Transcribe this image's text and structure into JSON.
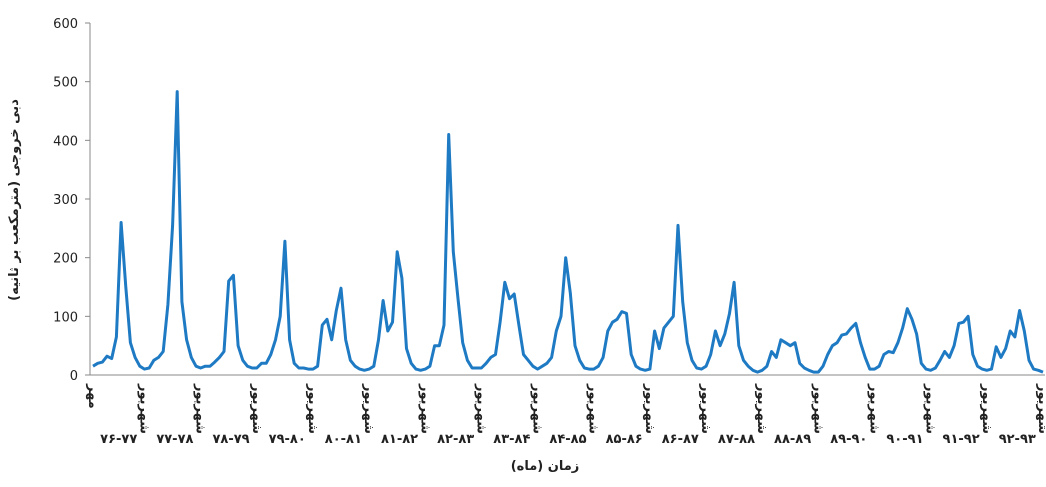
{
  "chart_data": {
    "type": "line",
    "y_label": "دبی خروجی (مترمکعب بر ثانیه)",
    "x_label": "زمان (ماه)",
    "ylim": [
      0,
      600
    ],
    "yticks": [
      0,
      100,
      200,
      300,
      400,
      500,
      600
    ],
    "year_labels": [
      "۷۶-۷۷",
      "۷۷-۷۸",
      "۷۸-۷۹",
      "۷۹-۸۰",
      "۸۰-۸۱",
      "۸۱-۸۲",
      "۸۲-۸۳",
      "۸۳-۸۴",
      "۸۴-۸۵",
      "۸۵-۸۶",
      "۸۶-۸۷",
      "۸۷-۸۸",
      "۸۸-۸۹",
      "۸۹-۹۰",
      "۹۰-۹۱",
      "۹۱-۹۲",
      "۹۲-۹۳"
    ],
    "categories": [
      "مهر",
      null,
      null,
      null,
      null,
      null,
      null,
      null,
      null,
      null,
      null,
      "شهریور",
      null,
      null,
      null,
      null,
      null,
      null,
      null,
      null,
      null,
      null,
      null,
      "شهریور",
      null,
      null,
      null,
      null,
      null,
      null,
      null,
      null,
      null,
      null,
      null,
      "شهریور",
      null,
      null,
      null,
      null,
      null,
      null,
      null,
      null,
      null,
      null,
      null,
      "شهریور",
      null,
      null,
      null,
      null,
      null,
      null,
      null,
      null,
      null,
      null,
      null,
      "شهریور",
      null,
      null,
      null,
      null,
      null,
      null,
      null,
      null,
      null,
      null,
      null,
      "شهریور",
      null,
      null,
      null,
      null,
      null,
      null,
      null,
      null,
      null,
      null,
      null,
      "شهریور",
      null,
      null,
      null,
      null,
      null,
      null,
      null,
      null,
      null,
      null,
      null,
      "شهریور",
      null,
      null,
      null,
      null,
      null,
      null,
      null,
      null,
      null,
      null,
      null,
      "شهریور",
      null,
      null,
      null,
      null,
      null,
      null,
      null,
      null,
      null,
      null,
      null,
      "شهریور",
      null,
      null,
      null,
      null,
      null,
      null,
      null,
      null,
      null,
      null,
      null,
      "شهریور",
      null,
      null,
      null,
      null,
      null,
      null,
      null,
      null,
      null,
      null,
      null,
      "شهریور",
      null,
      null,
      null,
      null,
      null,
      null,
      null,
      null,
      null,
      null,
      null,
      "شهریور",
      null,
      null,
      null,
      null,
      null,
      null,
      null,
      null,
      null,
      null,
      null,
      "شهریور",
      null,
      null,
      null,
      null,
      null,
      null,
      null,
      null,
      null,
      null,
      null,
      "شهریور",
      null,
      null,
      null,
      null,
      null,
      null,
      null,
      null,
      null,
      null,
      null,
      "شهریور",
      null,
      null,
      null,
      null,
      null,
      null,
      null,
      null,
      null,
      null,
      null,
      "شهریور"
    ],
    "series": [
      {
        "color": "#1f7ac4",
        "values": [
          15,
          20,
          22,
          32,
          28,
          65,
          260,
          150,
          55,
          30,
          15,
          10,
          12,
          25,
          30,
          40,
          120,
          255,
          483,
          125,
          60,
          30,
          15,
          12,
          15,
          15,
          22,
          30,
          40,
          160,
          170,
          50,
          25,
          15,
          12,
          12,
          20,
          20,
          35,
          60,
          100,
          228,
          60,
          20,
          12,
          12,
          10,
          10,
          15,
          85,
          95,
          60,
          110,
          148,
          60,
          25,
          15,
          10,
          8,
          10,
          15,
          60,
          127,
          75,
          90,
          210,
          165,
          45,
          20,
          10,
          8,
          10,
          15,
          50,
          50,
          85,
          410,
          210,
          130,
          55,
          25,
          12,
          12,
          12,
          20,
          30,
          35,
          90,
          158,
          130,
          138,
          85,
          35,
          25,
          15,
          10,
          15,
          20,
          30,
          75,
          100,
          200,
          140,
          50,
          25,
          12,
          10,
          10,
          15,
          30,
          75,
          90,
          95,
          108,
          105,
          35,
          15,
          10,
          8,
          10,
          75,
          45,
          80,
          90,
          100,
          255,
          125,
          55,
          25,
          12,
          10,
          15,
          35,
          75,
          50,
          70,
          105,
          158,
          50,
          25,
          15,
          8,
          5,
          8,
          15,
          40,
          30,
          60,
          55,
          50,
          55,
          20,
          12,
          8,
          5,
          5,
          15,
          35,
          50,
          55,
          68,
          70,
          80,
          88,
          55,
          30,
          10,
          10,
          15,
          35,
          40,
          38,
          55,
          80,
          113,
          95,
          70,
          20,
          10,
          8,
          12,
          25,
          40,
          30,
          50,
          88,
          90,
          100,
          35,
          15,
          10,
          8,
          10,
          48,
          30,
          45,
          75,
          65,
          110,
          75,
          25,
          10,
          8,
          5
        ]
      }
    ]
  }
}
